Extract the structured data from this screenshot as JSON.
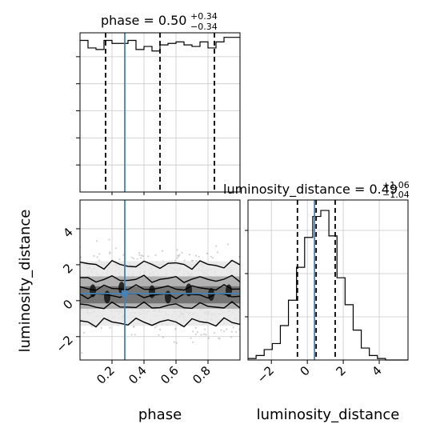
{
  "chart_data": [
    {
      "panel": "phase-marginal",
      "type": "histogram",
      "title_prefix": "phase = 0.50",
      "title_sup": "+0.34",
      "title_sub": "−0.34",
      "xlim": [
        0.0,
        1.0
      ],
      "bins": [
        0.0,
        0.05,
        0.1,
        0.15,
        0.2,
        0.25,
        0.3,
        0.35,
        0.4,
        0.45,
        0.5,
        0.55,
        0.6,
        0.65,
        0.7,
        0.75,
        0.8,
        0.85,
        0.9,
        0.95,
        1.0
      ],
      "counts": [
        1.0,
        0.95,
        0.94,
        1.0,
        0.98,
        0.98,
        1.0,
        0.94,
        0.96,
        0.93,
        0.97,
        0.98,
        0.99,
        0.97,
        0.96,
        0.99,
        0.95,
        0.99,
        1.02,
        1.02
      ],
      "ylim": [
        0,
        1.05
      ],
      "quantiles": [
        0.16,
        0.5,
        0.84
      ],
      "truth": 0.28
    },
    {
      "panel": "luminosity-distance-marginal",
      "type": "histogram",
      "title_prefix": "luminosity_distance = 0.49",
      "title_sup": "+1.06",
      "title_sub": "−1.04",
      "xlim": [
        -3.3,
        5.6
      ],
      "xticks": [
        -2,
        0,
        2,
        4
      ],
      "bins": [
        -3.3,
        -2.85,
        -2.4,
        -1.95,
        -1.5,
        -1.05,
        -0.6,
        -0.15,
        0.3,
        0.75,
        1.2,
        1.65,
        2.1,
        2.55,
        3.0,
        3.45,
        3.9,
        4.35,
        4.8,
        5.25,
        5.6
      ],
      "counts": [
        0.01,
        0.03,
        0.07,
        0.11,
        0.23,
        0.4,
        0.62,
        0.82,
        0.96,
        1.0,
        0.83,
        0.55,
        0.37,
        0.2,
        0.08,
        0.03,
        0.01,
        0.0,
        0.0,
        0.0
      ],
      "ylim": [
        0,
        1.07
      ],
      "quantiles": [
        -0.55,
        0.49,
        1.55
      ],
      "truth": 0.4,
      "xlabel": "luminosity_distance"
    },
    {
      "panel": "joint-2d",
      "type": "scatter",
      "xlim": [
        0.0,
        1.0
      ],
      "ylim": [
        -3.3,
        5.6
      ],
      "xticks": [
        0.2,
        0.4,
        0.6,
        0.8
      ],
      "yticks": [
        -2,
        0,
        2,
        4
      ],
      "xlabel": "phase",
      "ylabel": "luminosity_distance",
      "truth_x": 0.28,
      "truth_y": 0.4,
      "contour_levels_y": {
        "upper_outer": 2.0,
        "upper_inner": 1.2,
        "center_upper": 0.7,
        "center_lower": 0.3,
        "lower_inner": -0.3,
        "lower_outer": -1.2
      },
      "scatter_mean": 0.4,
      "scatter_sd": 1.0
    }
  ]
}
